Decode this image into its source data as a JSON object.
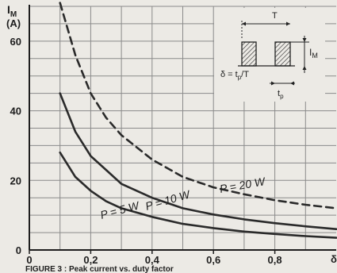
{
  "chart_data": {
    "type": "line",
    "ylabel_symbol": "I",
    "ylabel_subscript": "M",
    "ylabel_unit": "(A)",
    "xlabel": "δ",
    "xlim": [
      0,
      1
    ],
    "ylim": [
      0,
      70
    ],
    "x_ticks": [
      {
        "value": 0,
        "label": "0"
      },
      {
        "value": 0.2,
        "label": "0,2"
      },
      {
        "value": 0.4,
        "label": "0,4"
      },
      {
        "value": 0.6,
        "label": "0,6"
      },
      {
        "value": 0.8,
        "label": "0,8"
      }
    ],
    "y_ticks": [
      {
        "value": 0,
        "label": "0"
      },
      {
        "value": 20,
        "label": "20"
      },
      {
        "value": 40,
        "label": "40"
      },
      {
        "value": 60,
        "label": "60"
      }
    ],
    "grid": true,
    "series": [
      {
        "name": "P = 5 W",
        "style": "solid",
        "x": [
          0.1,
          0.15,
          0.2,
          0.25,
          0.3,
          0.4,
          0.5,
          0.6,
          0.7,
          0.8,
          0.9,
          1.0
        ],
        "y": [
          28,
          21,
          17,
          14,
          12,
          9.5,
          7.5,
          6.3,
          5.3,
          4.6,
          4,
          3.5
        ]
      },
      {
        "name": "P = 10 W",
        "style": "solid",
        "x": [
          0.1,
          0.15,
          0.2,
          0.25,
          0.3,
          0.4,
          0.5,
          0.6,
          0.7,
          0.8,
          0.9,
          1.0
        ],
        "y": [
          45,
          34,
          27,
          23,
          19,
          15,
          12,
          10.2,
          8.8,
          7.7,
          6.8,
          6
        ]
      },
      {
        "name": "P = 20 W",
        "style": "dashed",
        "x": [
          0.1,
          0.15,
          0.2,
          0.25,
          0.3,
          0.4,
          0.5,
          0.6,
          0.7,
          0.8,
          0.9,
          1.0
        ],
        "y": [
          71,
          56,
          45,
          38,
          33,
          26,
          21,
          18,
          16,
          14.3,
          13,
          12
        ]
      }
    ],
    "inset": {
      "period_label": "T",
      "amplitude_symbol": "I",
      "amplitude_subscript": "M",
      "formula_prefix": "δ = t",
      "formula_subscript": "p",
      "formula_suffix": "/T",
      "pulse_width_symbol": "t",
      "pulse_width_subscript": "p"
    },
    "caption": "FIGURE 3 : Peak current vs. duty factor"
  },
  "colors": {
    "background": "#eceae5",
    "grid": "#8a8a8a",
    "curves": "#2a2a2a"
  }
}
